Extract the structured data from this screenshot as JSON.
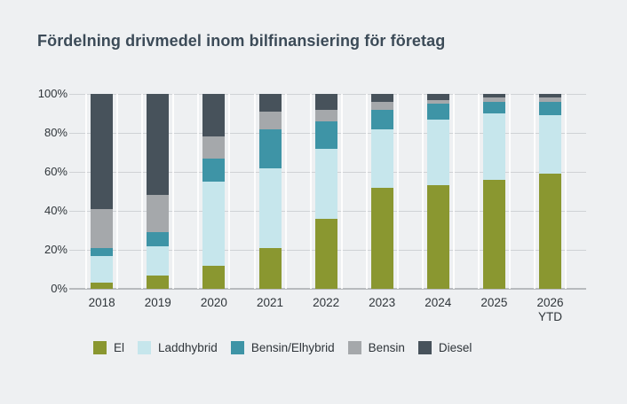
{
  "page": {
    "title": "Fördelning drivmedel inom bilfinansiering för företag",
    "background_color": "#eef0f2"
  },
  "chart_data": {
    "type": "bar",
    "stacked": true,
    "unit": "%",
    "title": "Fördelning drivmedel inom bilfinansiering för företag",
    "categories": [
      "2018",
      "2019",
      "2020",
      "2021",
      "2022",
      "2023",
      "2024",
      "2025",
      "2026 YTD"
    ],
    "series": [
      {
        "name": "El",
        "color": "#8a9730",
        "values": [
          3,
          7,
          12,
          21,
          36,
          52,
          53,
          56,
          59
        ]
      },
      {
        "name": "Laddhybrid",
        "color": "#c6e6ec",
        "values": [
          14,
          15,
          43,
          41,
          36,
          30,
          34,
          34,
          30
        ]
      },
      {
        "name": "Bensin/Elhybrid",
        "color": "#3e94a6",
        "values": [
          4,
          7,
          12,
          20,
          14,
          10,
          8,
          6,
          7
        ]
      },
      {
        "name": "Bensin",
        "color": "#a5a8ab",
        "values": [
          20,
          19,
          11,
          9,
          6,
          4,
          2,
          2,
          2
        ]
      },
      {
        "name": "Diesel",
        "color": "#47525b",
        "values": [
          59,
          52,
          22,
          9,
          8,
          4,
          3,
          2,
          2
        ]
      }
    ],
    "y_ticks": [
      "100%",
      "80%",
      "60%",
      "40%",
      "20%",
      "0%"
    ],
    "ylim": [
      0,
      100
    ],
    "grid": "horizontal",
    "legend_position": "bottom",
    "xlabel": "",
    "ylabel": ""
  }
}
